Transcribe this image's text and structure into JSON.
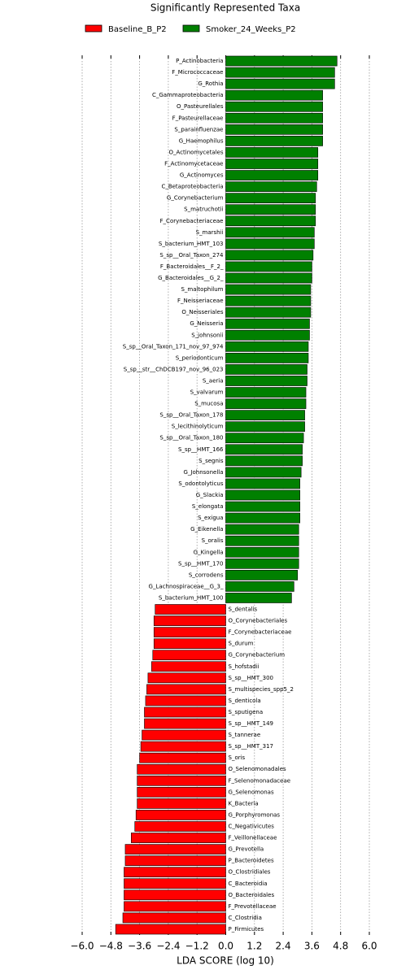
{
  "chart_data": {
    "type": "hbar",
    "title": "Significantly Represented Taxa",
    "x_label": "LDA SCORE (log 10)",
    "categories": [
      "P_Actinobacteria",
      "F_Micrococcaceae",
      "G_Rothia",
      "C_Gammaproteobacteria",
      "O_Pasteurellales",
      "F_Pasteurellaceae",
      "S_parainfluenzae",
      "G_Haemophilus",
      "O_Actinomycetales",
      "F_Actinomycetaceae",
      "G_Actinomyces",
      "C_Betaproteobacteria",
      "G_Corynebacterium",
      "S_matruchotii",
      "F_Corynebacteriaceae",
      "S_marshii",
      "S_bacterium_HMT_103",
      "S_sp__Oral_Taxon_274",
      "F_Bacteroidales__F_2_",
      "G_Bacteroidales__G_2_",
      "S_maltophilum",
      "F_Neisseriaceae",
      "O_Neisseriales",
      "G_Neisseria",
      "S_johnsonii",
      "S_sp__Oral_Taxon_171_nov_97_974",
      "S_periodonticum",
      "S_sp__str__ChDCB197_nov_96_023",
      "S_aeria",
      "S_valvarum",
      "S_mucosa",
      "S_sp__Oral_Taxon_178",
      "S_lecithinolyticum",
      "S_sp__Oral_Taxon_180",
      "S_sp__HMT_166",
      "S_segnis",
      "G_Johnsonella",
      "S_odontolyticus",
      "G_Slackia",
      "S_elongata",
      "S_exigua",
      "G_Eikenella",
      "S_oralis",
      "G_Kingella",
      "S_sp__HMT_170",
      "S_corrodens",
      "G_Lachnospiraceae__G_3_",
      "S_bacterium_HMT_100",
      "S_dentalis",
      "O_Corynebacteriales",
      "F_Corynebacteriaceae",
      "S_durum",
      "G_Corynebacterium",
      "S_hofstadii",
      "S_sp__HMT_300",
      "S_multispecies_spp5_2",
      "S_denticola",
      "S_sputigena",
      "S_sp__HMT_149",
      "S_tannerae",
      "S_sp__HMT_317",
      "S_oris",
      "O_Selenomonadales",
      "F_Selenomonadaceae",
      "G_Selenomonas",
      "K_Bacteria",
      "G_Porphyromonas",
      "C_Negativicutes",
      "F_Veillonellaceae",
      "G_Prevotella",
      "P_Bacteroidetes",
      "O_Clostridiales",
      "C_Bacteroidia",
      "O_Bacteroidales",
      "F_Prevotellaceae",
      "C_Clostridia",
      "P_Firmicutes"
    ],
    "series": [
      {
        "name": "Baseline_B_P2",
        "color": "#ff0000",
        "values": [
          null,
          null,
          null,
          null,
          null,
          null,
          null,
          null,
          null,
          null,
          null,
          null,
          null,
          null,
          null,
          null,
          null,
          null,
          null,
          null,
          null,
          null,
          null,
          null,
          null,
          null,
          null,
          null,
          null,
          null,
          null,
          null,
          null,
          null,
          null,
          null,
          null,
          null,
          null,
          null,
          null,
          null,
          null,
          null,
          null,
          null,
          null,
          null,
          -2.95,
          -3.0,
          -3.0,
          -3.0,
          -3.05,
          -3.1,
          -3.25,
          -3.3,
          -3.35,
          -3.4,
          -3.4,
          -3.5,
          -3.55,
          -3.6,
          -3.7,
          -3.7,
          -3.7,
          -3.7,
          -3.75,
          -3.8,
          -3.95,
          -4.2,
          -4.2,
          -4.25,
          -4.25,
          -4.25,
          -4.25,
          -4.3,
          -4.6
        ]
      },
      {
        "name": "Smoker_24_Weeks_P2",
        "color": "#008000",
        "values": [
          4.65,
          4.55,
          4.55,
          4.05,
          4.05,
          4.05,
          4.05,
          4.05,
          3.85,
          3.85,
          3.85,
          3.8,
          3.75,
          3.75,
          3.75,
          3.7,
          3.7,
          3.65,
          3.6,
          3.6,
          3.55,
          3.55,
          3.55,
          3.5,
          3.5,
          3.45,
          3.45,
          3.4,
          3.4,
          3.35,
          3.35,
          3.3,
          3.3,
          3.25,
          3.2,
          3.2,
          3.15,
          3.1,
          3.1,
          3.1,
          3.1,
          3.05,
          3.05,
          3.05,
          3.05,
          3.0,
          2.85,
          2.75,
          null,
          null,
          null,
          null,
          null,
          null,
          null,
          null,
          null,
          null,
          null,
          null,
          null,
          null,
          null,
          null,
          null,
          null,
          null,
          null,
          null,
          null,
          null,
          null,
          null,
          null,
          null,
          null,
          null
        ]
      }
    ],
    "xlim": [
      -6,
      6
    ],
    "xticks": [
      {
        "value": -6,
        "label": "−6.0"
      },
      {
        "value": -4.8,
        "label": "−4.8"
      },
      {
        "value": -3.6,
        "label": "−3.6"
      },
      {
        "value": -2.4,
        "label": "−2.4"
      },
      {
        "value": -1.2,
        "label": "−1.2"
      },
      {
        "value": 0,
        "label": "0.0"
      },
      1.2,
      2.4,
      3.6,
      4.8,
      {
        "value": 6,
        "label": "6.0"
      }
    ],
    "grid": true
  }
}
